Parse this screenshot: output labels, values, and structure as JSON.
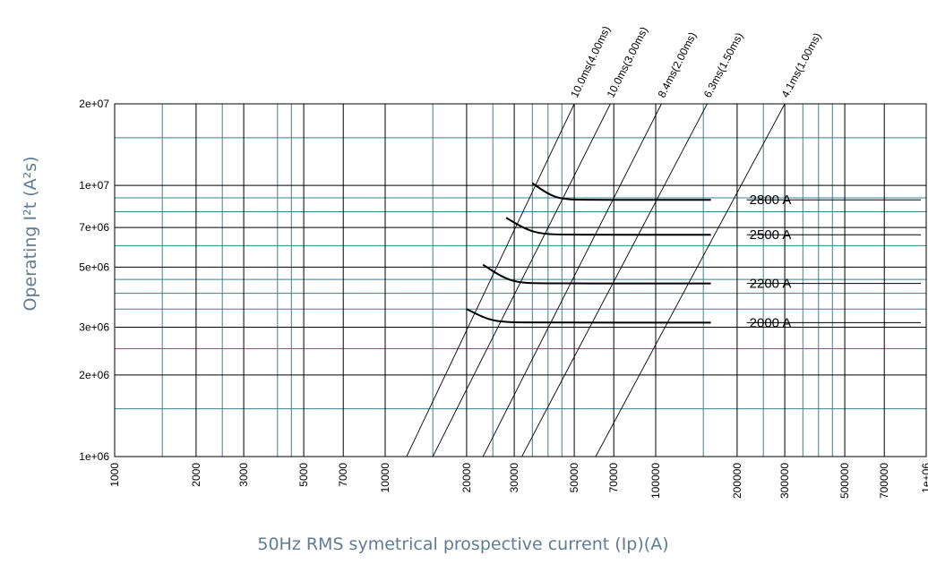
{
  "chart_data": {
    "type": "line",
    "title": "",
    "xlabel": "50Hz RMS symetrical prospective current (Ip)(A)",
    "ylabel": "Operating I²t (A²s)",
    "xscale": "log",
    "yscale": "log",
    "xlim": [
      1000,
      1000000
    ],
    "ylim": [
      1000000,
      20000000
    ],
    "grid": true,
    "x_ticks": [
      {
        "value": 1000,
        "label": "1000"
      },
      {
        "value": 2000,
        "label": "2000"
      },
      {
        "value": 3000,
        "label": "3000"
      },
      {
        "value": 5000,
        "label": "5000"
      },
      {
        "value": 7000,
        "label": "7000"
      },
      {
        "value": 10000,
        "label": "10000"
      },
      {
        "value": 20000,
        "label": "20000"
      },
      {
        "value": 30000,
        "label": "30000"
      },
      {
        "value": 50000,
        "label": "50000"
      },
      {
        "value": 70000,
        "label": "70000"
      },
      {
        "value": 100000,
        "label": "100000"
      },
      {
        "value": 200000,
        "label": "200000"
      },
      {
        "value": 300000,
        "label": "300000"
      },
      {
        "value": 500000,
        "label": "500000"
      },
      {
        "value": 700000,
        "label": "700000"
      },
      {
        "value": 1000000,
        "label": "1e+06"
      }
    ],
    "y_ticks": [
      {
        "value": 1000000,
        "label": "1e+06"
      },
      {
        "value": 2000000,
        "label": "2e+06"
      },
      {
        "value": 3000000,
        "label": "3e+06"
      },
      {
        "value": 5000000,
        "label": "5e+06"
      },
      {
        "value": 7000000,
        "label": "7e+06"
      },
      {
        "value": 10000000,
        "label": "1e+07"
      },
      {
        "value": 20000000,
        "label": "2e+07"
      }
    ],
    "x_grid_secondary": [
      1500,
      2500,
      4000,
      4500,
      15000,
      25000,
      35000,
      40000,
      45000,
      150000,
      250000,
      350000,
      400000,
      450000
    ],
    "y_grid_secondary": [
      1500000,
      2500000,
      3500000,
      4000000,
      4500000,
      6000000,
      8000000,
      9000000,
      15000000
    ],
    "series": [
      {
        "name": "2800 A",
        "points": [
          [
            35000,
            10200000
          ],
          [
            40000,
            9300000
          ],
          [
            45000,
            8900000
          ],
          [
            55000,
            8850000
          ],
          [
            160000,
            8850000
          ]
        ]
      },
      {
        "name": "2500 A",
        "points": [
          [
            28000,
            7600000
          ],
          [
            33000,
            6900000
          ],
          [
            38000,
            6620000
          ],
          [
            48000,
            6580000
          ],
          [
            160000,
            6580000
          ]
        ]
      },
      {
        "name": "2200 A",
        "points": [
          [
            23000,
            5100000
          ],
          [
            27000,
            4600000
          ],
          [
            31000,
            4380000
          ],
          [
            40000,
            4350000
          ],
          [
            160000,
            4350000
          ]
        ]
      },
      {
        "name": "2000 A",
        "points": [
          [
            20000,
            3500000
          ],
          [
            24000,
            3200000
          ],
          [
            28000,
            3130000
          ],
          [
            36000,
            3120000
          ],
          [
            160000,
            3120000
          ]
        ]
      }
    ],
    "diagonal_lines": [
      {
        "label": "10.0ms(4.00ms)",
        "from": [
          12000,
          1000000
        ],
        "to": [
          50000,
          20000000
        ]
      },
      {
        "label": "10.0ms(3.00ms)",
        "from": [
          15000,
          1000000
        ],
        "to": [
          68000,
          20000000
        ]
      },
      {
        "label": "8.4ms(2.00ms)",
        "from": [
          23000,
          1000000
        ],
        "to": [
          105000,
          20000000
        ]
      },
      {
        "label": "6.3ms(1.50ms)",
        "from": [
          32000,
          1000000
        ],
        "to": [
          155000,
          20000000
        ]
      },
      {
        "label": "4.1ms(1.00ms)",
        "from": [
          60000,
          1000000
        ],
        "to": [
          300000,
          20000000
        ]
      }
    ]
  }
}
